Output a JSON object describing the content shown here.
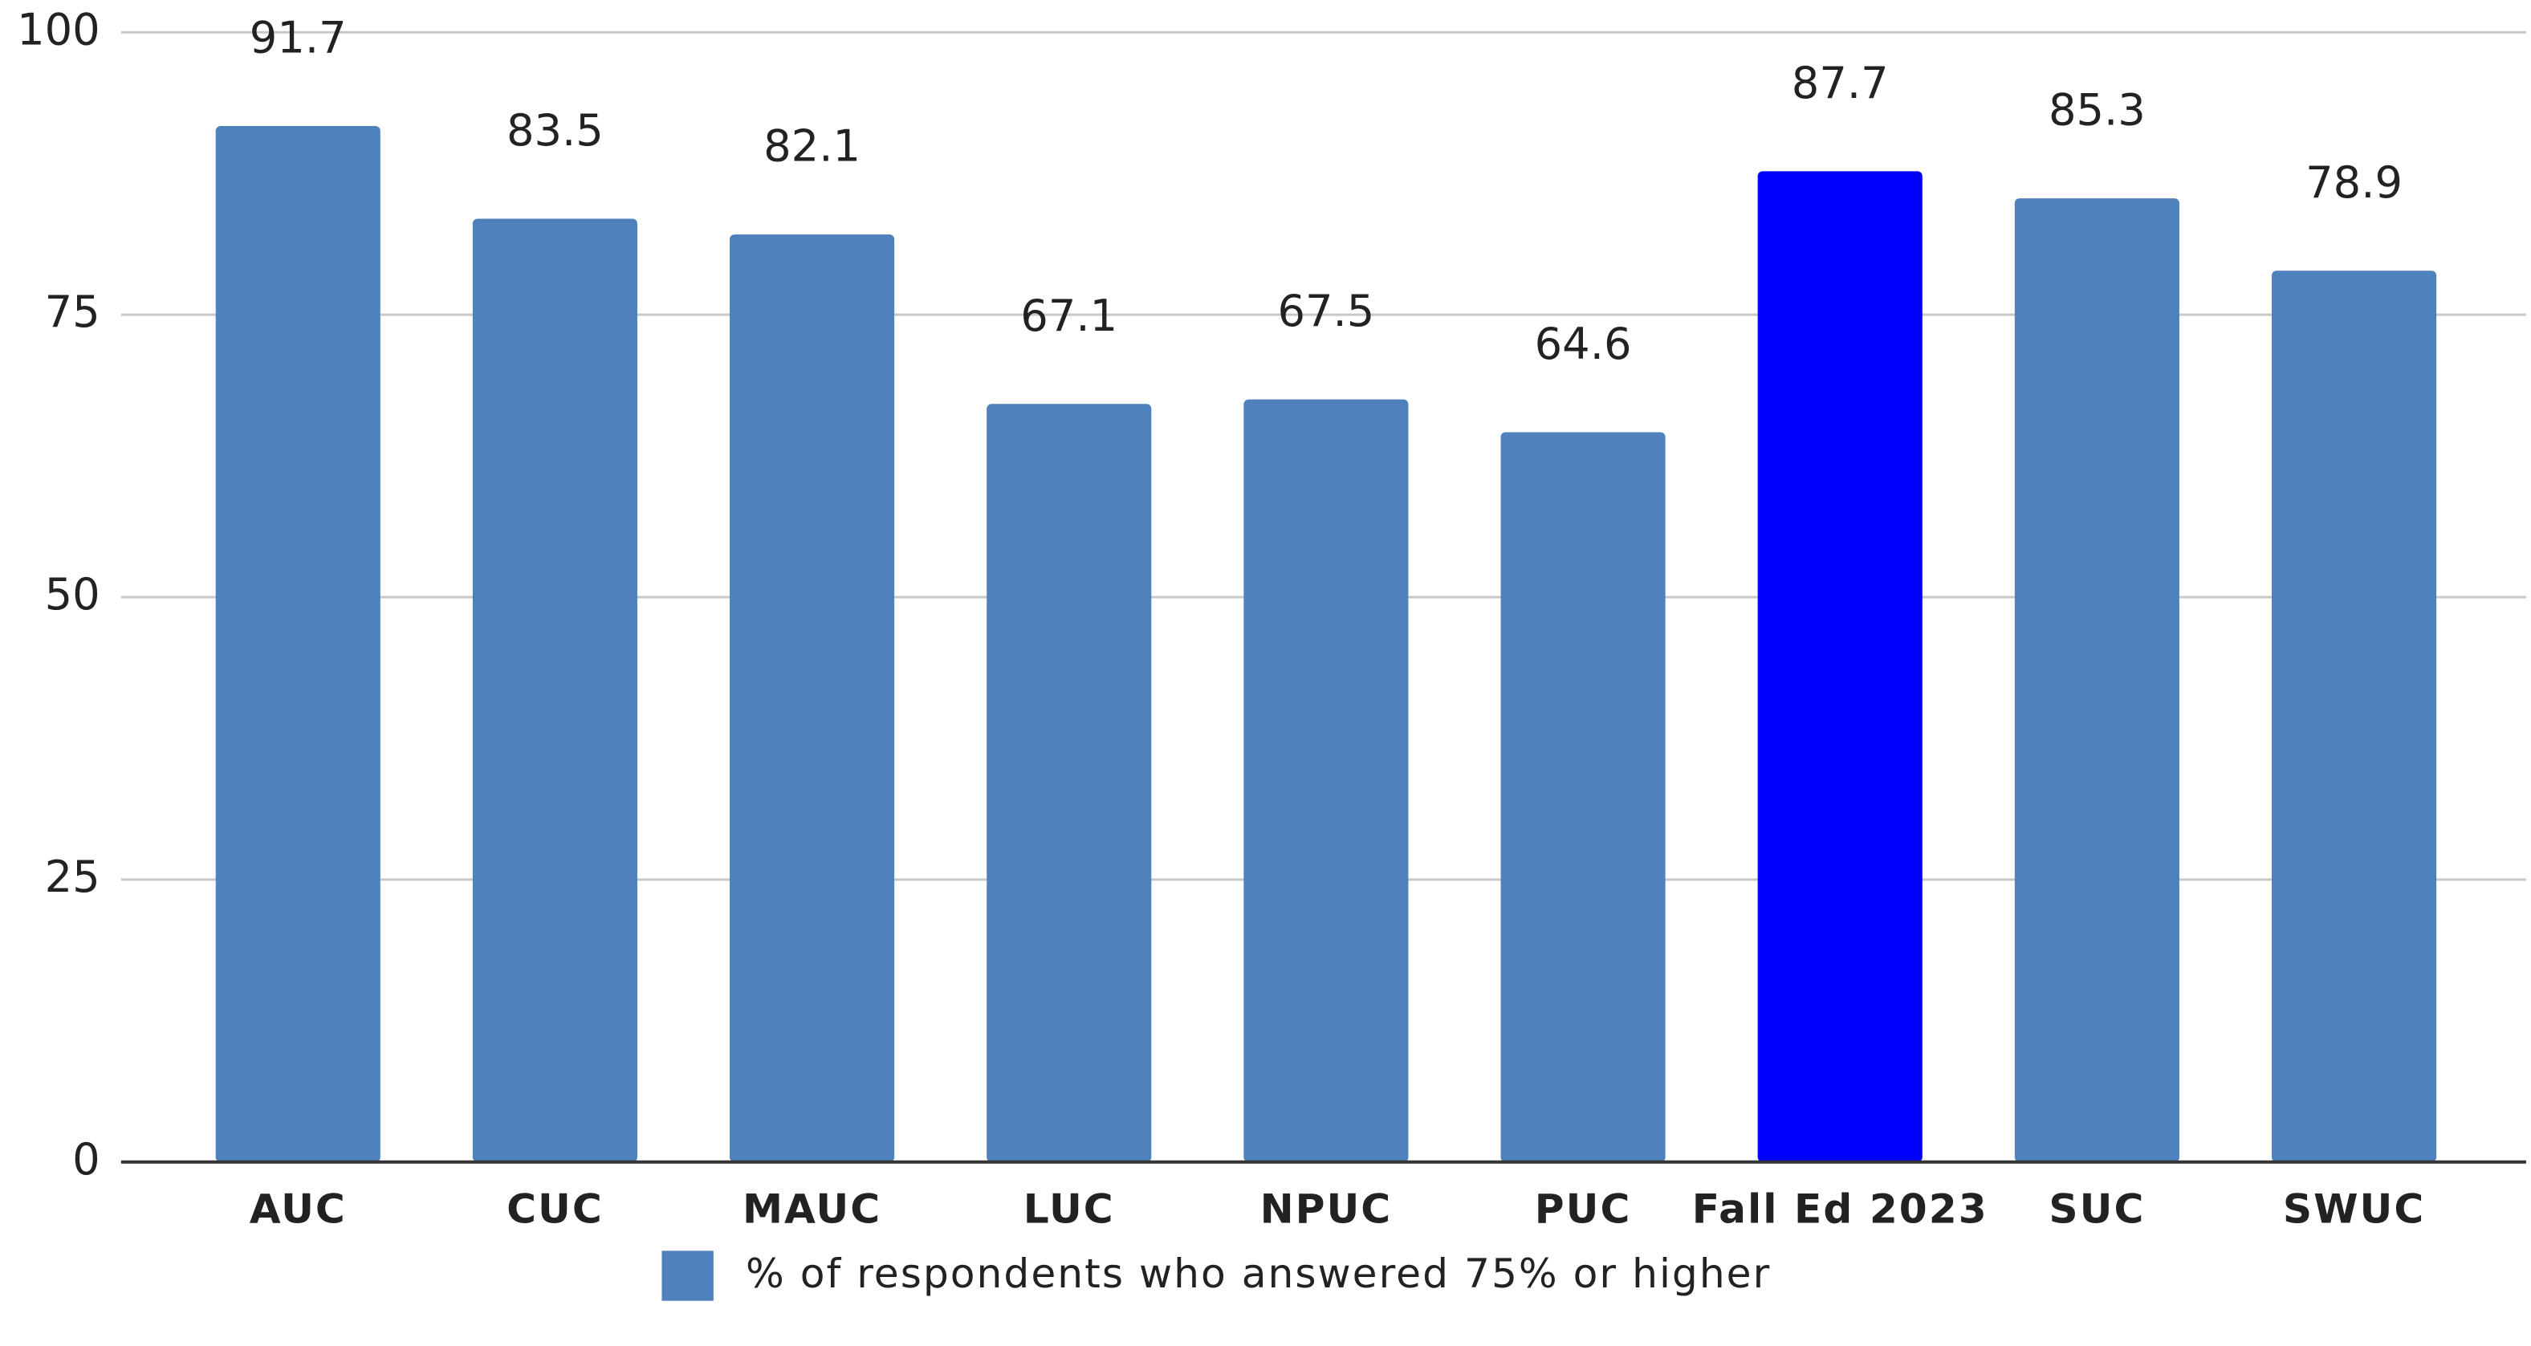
{
  "chart_data": {
    "type": "bar",
    "categories": [
      "AUC",
      "CUC",
      "MAUC",
      "LUC",
      "NPUC",
      "PUC",
      "Fall Ed 2023",
      "SUC",
      "SWUC"
    ],
    "series": [
      {
        "name": "% of respondents who answered 75% or higher",
        "color": "#4f81bd",
        "values": [
          91.7,
          83.5,
          82.1,
          67.1,
          67.5,
          64.6,
          87.7,
          85.3,
          78.9
        ],
        "colors": [
          "#4f81bd",
          "#4f81bd",
          "#4f81bd",
          "#4f81bd",
          "#4f81bd",
          "#4f81bd",
          "#0000ff",
          "#4f81bd",
          "#4f81bd"
        ]
      }
    ],
    "ylim": [
      0,
      100
    ],
    "yticks": [
      0,
      25,
      50,
      75,
      100
    ],
    "grid": true,
    "legend": "bottom"
  }
}
